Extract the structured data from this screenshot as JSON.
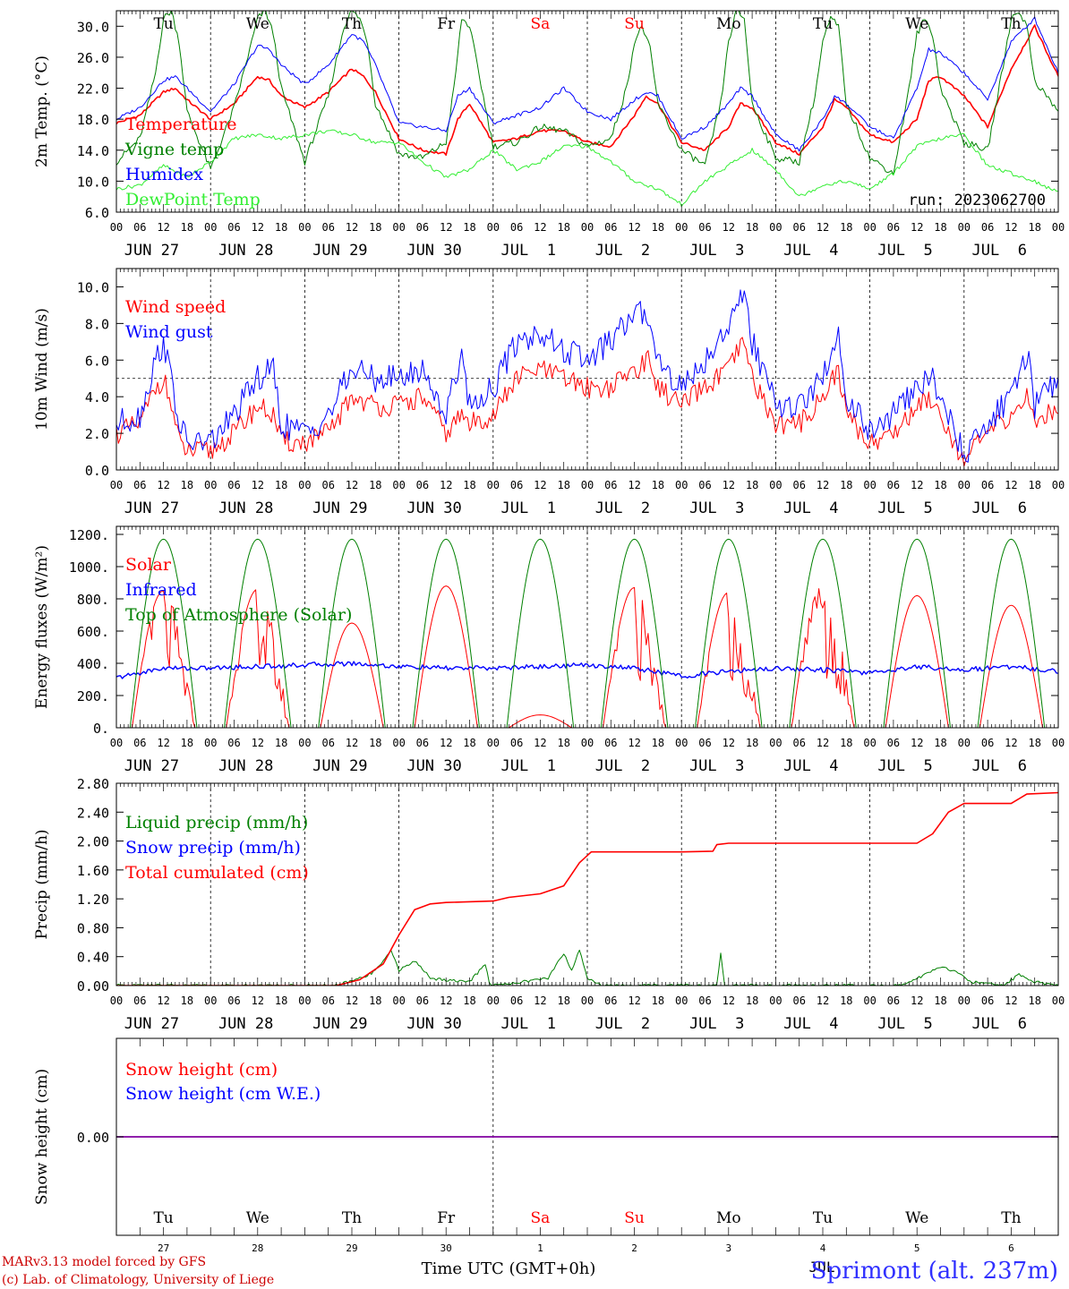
{
  "colors": {
    "red": "#ff0000",
    "green": "#008000",
    "blue": "#0000ff",
    "lightgreen": "#33ee33",
    "purple": "#8000a0"
  },
  "weekdays": [
    {
      "label": "Tu",
      "color": "#000000"
    },
    {
      "label": "We",
      "color": "#000000"
    },
    {
      "label": "Th",
      "color": "#000000"
    },
    {
      "label": "Fr",
      "color": "#000000"
    },
    {
      "label": "Sa",
      "color": "#ff0000"
    },
    {
      "label": "Su",
      "color": "#ff0000"
    },
    {
      "label": "Mo",
      "color": "#000000"
    },
    {
      "label": "Tu",
      "color": "#000000"
    },
    {
      "label": "We",
      "color": "#000000"
    },
    {
      "label": "Th",
      "color": "#000000"
    }
  ],
  "date_labels": [
    "JUN 27",
    "JUN 28",
    "JUN 29",
    "JUN 30",
    "JUL  1",
    "JUL  2",
    "JUL  3",
    "JUL  4",
    "JUL  5",
    "JUL  6"
  ],
  "hour_labels": [
    "00",
    "06",
    "12",
    "18"
  ],
  "day_numbers": [
    "27",
    "28",
    "29",
    "30",
    "1",
    "2",
    "3",
    "4",
    "5",
    "6"
  ],
  "bottom_month_label": "JUL",
  "run_label": "run: 2023062700",
  "time_axis_label": "Time UTC (GMT+0h)",
  "footer": {
    "line1": "MARv3.13 model forced by GFS",
    "line2": "(c) Lab. of Climatology, University of Liege"
  },
  "station_label": "Sprimont (alt. 237m)",
  "chart_data": [
    {
      "type": "line",
      "ylabel": "2m Temp. (°C)",
      "ylim": [
        6.0,
        32.0
      ],
      "yticks": [
        "6.0",
        "10.0",
        "14.0",
        "18.0",
        "22.0",
        "26.0",
        "30.0"
      ],
      "x_unit": "hours since 2023-06-27 00 UTC",
      "series": [
        {
          "name": "Temperature",
          "color": "#ff0000",
          "x": [
            0,
            6,
            12,
            15,
            18,
            24,
            30,
            36,
            39,
            42,
            48,
            54,
            60,
            63,
            66,
            72,
            78,
            84,
            87,
            90,
            96,
            102,
            108,
            114,
            120,
            126,
            132,
            135,
            138,
            144,
            150,
            156,
            159,
            162,
            168,
            174,
            180,
            183,
            186,
            192,
            198,
            204,
            207,
            210,
            216,
            222,
            228,
            234,
            240
          ],
          "y": [
            17.5,
            18.5,
            21.5,
            22.0,
            20.5,
            18.0,
            20.0,
            23.5,
            23.0,
            21.0,
            19.5,
            21.5,
            24.5,
            23.5,
            21.5,
            15.5,
            14.0,
            13.5,
            18.0,
            20.0,
            15.0,
            15.5,
            16.5,
            16.5,
            15.0,
            14.5,
            18.5,
            21.0,
            20.0,
            15.0,
            14.0,
            17.0,
            20.0,
            19.5,
            15.0,
            13.5,
            17.0,
            20.5,
            19.5,
            16.0,
            15.0,
            18.0,
            23.0,
            23.5,
            21.0,
            17.0,
            24.5,
            30.0,
            23.5
          ]
        },
        {
          "name": "Vigne temp",
          "color": "#008000",
          "x": [
            0,
            6,
            10,
            12,
            14,
            16,
            18,
            24,
            30,
            34,
            36,
            38,
            40,
            42,
            48,
            54,
            58,
            60,
            62,
            64,
            66,
            72,
            78,
            84,
            86,
            88,
            90,
            96,
            102,
            108,
            114,
            120,
            126,
            130,
            132,
            134,
            136,
            138,
            144,
            150,
            154,
            156,
            158,
            160,
            162,
            168,
            174,
            178,
            180,
            182,
            184,
            186,
            192,
            198,
            202,
            204,
            206,
            208,
            210,
            216,
            222,
            226,
            228,
            230,
            232,
            234,
            240
          ],
          "y": [
            12.5,
            15.5,
            24.0,
            31.0,
            32.0,
            28.0,
            19.0,
            11.5,
            19.5,
            27.0,
            31.0,
            32.0,
            29.0,
            22.0,
            12.5,
            21.0,
            30.0,
            32.0,
            31.0,
            28.0,
            20.0,
            13.5,
            13.0,
            15.0,
            22.0,
            31.0,
            30.0,
            14.5,
            15.0,
            17.0,
            16.5,
            14.5,
            15.5,
            22.0,
            28.0,
            30.0,
            27.0,
            20.0,
            14.0,
            12.0,
            20.0,
            28.0,
            32.0,
            31.0,
            20.0,
            13.0,
            12.5,
            21.0,
            28.0,
            31.0,
            30.0,
            20.0,
            13.0,
            11.0,
            22.0,
            29.0,
            31.0,
            29.0,
            22.0,
            15.0,
            14.0,
            25.0,
            31.0,
            32.0,
            30.0,
            23.0,
            19.0
          ]
        },
        {
          "name": "Humidex",
          "color": "#0000ff",
          "x": [
            0,
            6,
            12,
            15,
            18,
            24,
            30,
            36,
            39,
            42,
            48,
            54,
            60,
            63,
            66,
            72,
            78,
            84,
            87,
            90,
            96,
            102,
            108,
            114,
            120,
            126,
            132,
            135,
            138,
            144,
            150,
            156,
            159,
            162,
            168,
            174,
            180,
            183,
            186,
            192,
            198,
            204,
            207,
            210,
            216,
            222,
            228,
            234,
            240
          ],
          "y": [
            18.0,
            19.5,
            23.0,
            23.5,
            22.0,
            19.0,
            22.5,
            27.5,
            27.0,
            25.0,
            22.5,
            25.0,
            29.0,
            28.0,
            25.0,
            17.5,
            17.0,
            16.5,
            21.0,
            22.0,
            17.5,
            18.5,
            19.5,
            22.0,
            19.0,
            18.0,
            20.5,
            21.5,
            21.0,
            15.5,
            17.0,
            20.0,
            22.0,
            21.0,
            16.0,
            14.0,
            18.0,
            21.0,
            20.0,
            17.0,
            15.5,
            22.0,
            27.0,
            26.5,
            24.0,
            20.5,
            28.0,
            31.0,
            24.0
          ]
        },
        {
          "name": "DewPoint Temp",
          "color": "#33ee33",
          "x": [
            0,
            6,
            12,
            18,
            24,
            30,
            36,
            42,
            48,
            54,
            60,
            66,
            72,
            78,
            84,
            90,
            96,
            102,
            108,
            114,
            120,
            126,
            132,
            138,
            144,
            150,
            156,
            162,
            168,
            174,
            180,
            186,
            192,
            198,
            204,
            210,
            216,
            222,
            228,
            234,
            240
          ],
          "y": [
            9.0,
            9.5,
            12.0,
            10.5,
            12.5,
            15.5,
            16.0,
            15.5,
            16.0,
            16.5,
            16.0,
            15.0,
            15.0,
            12.5,
            10.5,
            11.5,
            14.0,
            11.5,
            12.5,
            14.5,
            14.5,
            12.5,
            10.0,
            9.0,
            7.0,
            10.0,
            12.0,
            14.0,
            11.5,
            8.0,
            9.5,
            10.0,
            9.0,
            11.0,
            14.5,
            15.5,
            16.0,
            12.0,
            11.0,
            10.0,
            8.5
          ]
        }
      ],
      "annotation": "run: 2023062700"
    },
    {
      "type": "line",
      "ylabel": "10m Wind (m/s)",
      "ylim": [
        0.0,
        11.0
      ],
      "yticks": [
        "0.0",
        "2.0",
        "4.0",
        "6.0",
        "8.0",
        "10.0"
      ],
      "reference_line": 5.0,
      "series": [
        {
          "name": "Wind speed",
          "color": "#ff0000",
          "x": [
            0,
            6,
            10,
            12,
            14,
            16,
            18,
            24,
            30,
            36,
            40,
            42,
            48,
            54,
            60,
            66,
            72,
            78,
            84,
            88,
            90,
            96,
            102,
            108,
            114,
            120,
            126,
            132,
            136,
            138,
            144,
            150,
            156,
            160,
            162,
            168,
            174,
            180,
            184,
            186,
            192,
            198,
            204,
            208,
            210,
            216,
            222,
            228,
            232,
            234,
            240
          ],
          "y": [
            2.0,
            2.5,
            4.5,
            5.0,
            3.5,
            1.5,
            1.0,
            1.0,
            2.0,
            3.5,
            3.0,
            1.5,
            1.5,
            2.0,
            4.0,
            3.5,
            3.5,
            4.0,
            2.0,
            3.0,
            2.5,
            3.0,
            5.0,
            5.5,
            5.0,
            4.5,
            4.5,
            5.5,
            6.0,
            4.5,
            3.5,
            4.5,
            5.5,
            7.0,
            5.0,
            2.5,
            2.5,
            4.0,
            5.5,
            3.0,
            1.5,
            2.0,
            3.5,
            4.0,
            3.0,
            0.5,
            2.0,
            3.0,
            4.0,
            2.5,
            3.5
          ]
        },
        {
          "name": "Wind gust",
          "color": "#0000ff",
          "x": [
            0,
            6,
            10,
            12,
            14,
            16,
            18,
            24,
            30,
            36,
            40,
            42,
            48,
            54,
            60,
            66,
            72,
            78,
            84,
            88,
            90,
            96,
            102,
            108,
            114,
            120,
            126,
            132,
            136,
            138,
            144,
            150,
            156,
            160,
            162,
            168,
            174,
            180,
            184,
            186,
            192,
            198,
            204,
            208,
            210,
            216,
            222,
            228,
            232,
            234,
            240
          ],
          "y": [
            2.5,
            3.0,
            6.0,
            7.0,
            5.0,
            2.5,
            1.5,
            1.5,
            3.0,
            5.0,
            5.5,
            2.5,
            2.0,
            3.0,
            5.5,
            5.0,
            5.0,
            5.5,
            3.0,
            6.5,
            3.5,
            4.5,
            7.0,
            7.5,
            6.5,
            6.0,
            7.0,
            8.5,
            8.5,
            6.0,
            4.5,
            6.0,
            8.0,
            9.5,
            7.0,
            3.5,
            3.5,
            5.0,
            7.5,
            4.0,
            2.0,
            3.0,
            4.5,
            5.0,
            4.0,
            0.8,
            2.5,
            4.0,
            6.5,
            3.5,
            5.0
          ]
        }
      ]
    },
    {
      "type": "line",
      "ylabel": "Energy fluxes (W/m²)",
      "ylim": [
        0,
        1250
      ],
      "yticks": [
        "0.",
        "200.",
        "400.",
        "600.",
        "800.",
        "1000.",
        "1200."
      ],
      "series": [
        {
          "name": "Solar",
          "color": "#ff0000",
          "day_peaks": [
            850,
            860,
            650,
            880,
            80,
            870,
            840,
            880,
            820,
            760
          ]
        },
        {
          "name": "Infrared",
          "color": "#0000ff",
          "x": [
            0,
            12,
            24,
            36,
            48,
            60,
            72,
            84,
            96,
            108,
            120,
            132,
            144,
            156,
            168,
            180,
            192,
            204,
            216,
            228,
            240
          ],
          "y": [
            310,
            370,
            370,
            380,
            390,
            400,
            380,
            370,
            370,
            380,
            390,
            370,
            320,
            350,
            370,
            360,
            340,
            380,
            360,
            380,
            350
          ]
        },
        {
          "name": "Top of Atmosphere (Solar)",
          "color": "#008000",
          "peak": 1170,
          "sunrise_hour": 3.5,
          "sunset_hour": 20.5
        }
      ]
    },
    {
      "type": "line",
      "ylabel": "Precip (mm/h)",
      "ylim": [
        0.0,
        2.8
      ],
      "yticks": [
        "0.00",
        "0.40",
        "0.80",
        "1.20",
        "1.60",
        "2.00",
        "2.40",
        "2.80"
      ],
      "series": [
        {
          "name": "Liquid precip (mm/h)",
          "color": "#008000",
          "x": [
            0,
            56,
            62,
            66,
            70,
            72,
            76,
            80,
            90,
            94,
            95,
            96,
            110,
            114,
            116,
            118,
            120,
            124,
            144,
            153,
            154,
            155,
            200,
            206,
            210,
            214,
            218,
            226,
            230,
            234,
            240
          ],
          "y": [
            0,
            0,
            0.1,
            0.2,
            0.5,
            0.2,
            0.35,
            0.1,
            0.05,
            0.3,
            0.05,
            0,
            0.1,
            0.45,
            0.2,
            0.5,
            0.1,
            0,
            0,
            0,
            0.45,
            0,
            0,
            0.15,
            0.25,
            0.2,
            0.05,
            0,
            0.15,
            0.05,
            0
          ]
        },
        {
          "name": "Snow precip (mm/h)",
          "color": "#0000ff",
          "x": [
            0,
            240
          ],
          "y": [
            0,
            0
          ]
        },
        {
          "name": "Total cumulated (cm)",
          "color": "#ff0000",
          "x": [
            0,
            56,
            62,
            68,
            72,
            76,
            80,
            84,
            96,
            100,
            108,
            114,
            118,
            121,
            144,
            152,
            153,
            156,
            204,
            208,
            212,
            216,
            228,
            232,
            240
          ],
          "y": [
            0,
            0,
            0.08,
            0.3,
            0.7,
            1.05,
            1.13,
            1.15,
            1.17,
            1.22,
            1.27,
            1.38,
            1.7,
            1.85,
            1.85,
            1.86,
            1.95,
            1.97,
            1.97,
            2.1,
            2.4,
            2.52,
            2.52,
            2.65,
            2.67
          ]
        }
      ]
    },
    {
      "type": "line",
      "ylabel": "Snow height (cm)",
      "ylim": [
        -1.0,
        1.0
      ],
      "yticks": [
        "0.00"
      ],
      "series": [
        {
          "name": "Snow height (cm)",
          "color": "#ff0000",
          "x": [
            0,
            240
          ],
          "y": [
            0,
            0
          ]
        },
        {
          "name": "Snow height (cm W.E.)",
          "color": "#0000ff",
          "x": [
            0,
            240
          ],
          "y": [
            0,
            0
          ]
        }
      ]
    }
  ]
}
